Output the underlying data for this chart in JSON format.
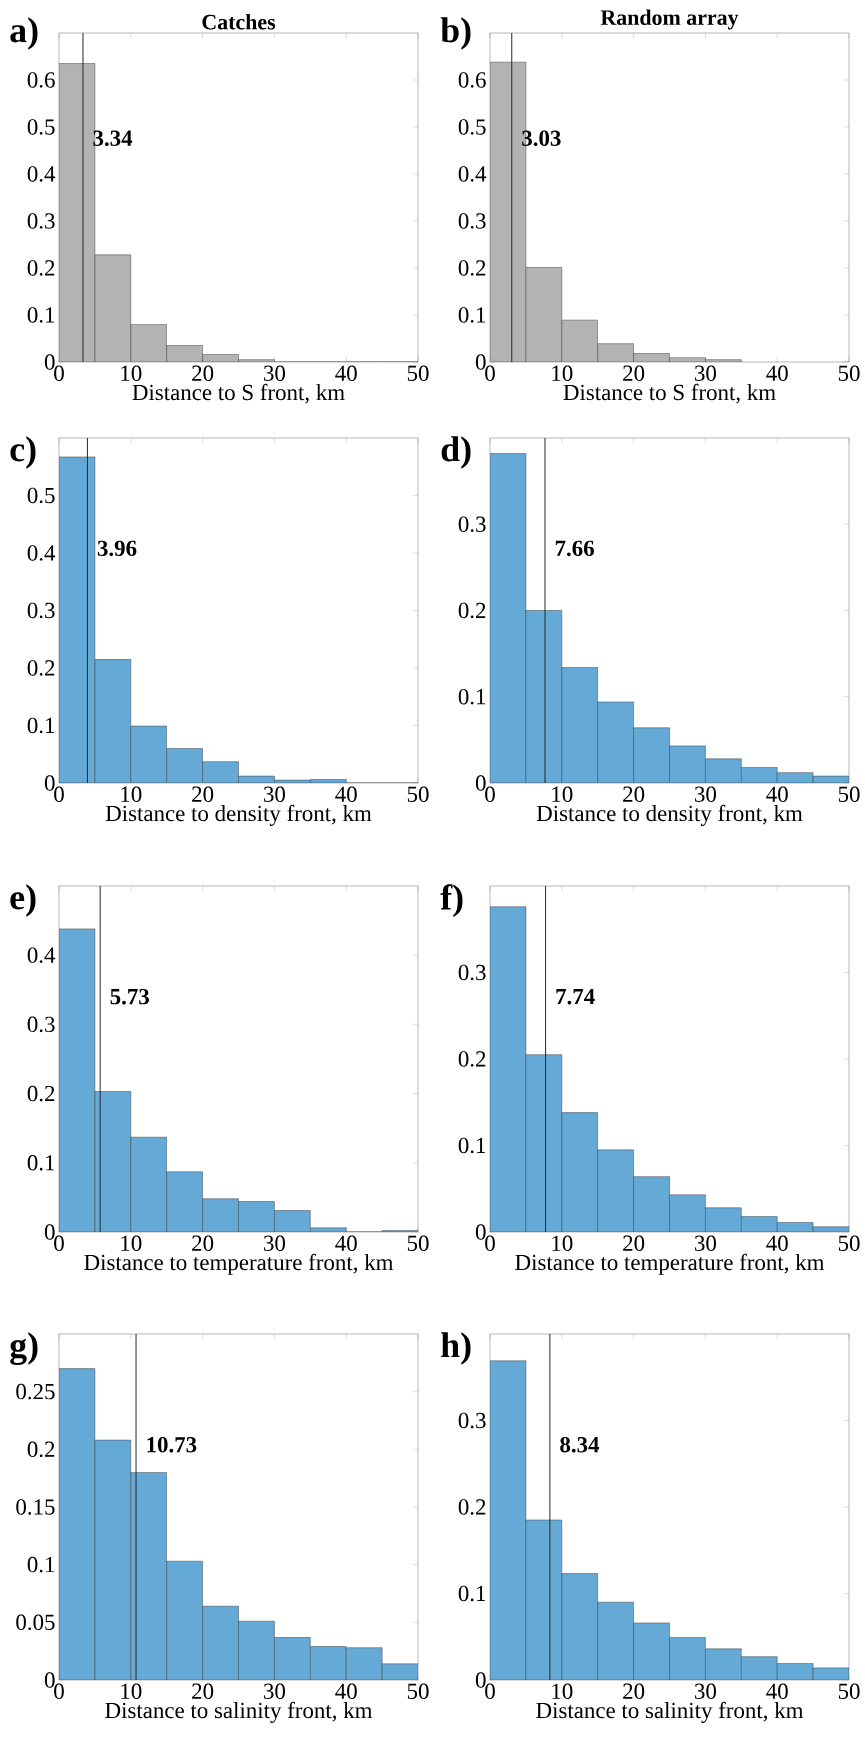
{
  "chart_data": [
    {
      "type": "histogram",
      "title": "Catches",
      "xlabel": "Distance to S front, km",
      "bins": [
        0,
        5,
        10,
        15,
        20,
        25,
        30,
        35,
        40,
        45,
        50
      ],
      "values": [
        0.635,
        0.228,
        0.08,
        0.035,
        0.016,
        0.005,
        0,
        0,
        0,
        0
      ],
      "color": "#b3b3b3",
      "xlim": [
        0,
        50
      ],
      "ylim": [
        0,
        0.7
      ],
      "xticks": [
        0,
        10,
        20,
        30,
        40,
        50
      ],
      "yticks": [
        0,
        0.1,
        0.2,
        0.3,
        0.4,
        0.5,
        0.6
      ],
      "ref_lines": [
        {
          "axis": "x",
          "value": 3.34,
          "label": "3.34"
        }
      ],
      "annotations": [
        "a)"
      ]
    },
    {
      "type": "histogram",
      "title": "Random array",
      "xlabel": "Distance to S front, km",
      "bins": [
        0,
        5,
        10,
        15,
        20,
        25,
        30,
        35,
        40,
        45,
        50
      ],
      "values": [
        0.638,
        0.201,
        0.089,
        0.039,
        0.018,
        0.009,
        0.005,
        null,
        null,
        null
      ],
      "color": "#b3b3b3",
      "xlim": [
        0,
        50
      ],
      "ylim": [
        0,
        0.7
      ],
      "xticks": [
        0,
        10,
        20,
        30,
        40,
        50
      ],
      "yticks": [
        0,
        0.1,
        0.2,
        0.3,
        0.4,
        0.5,
        0.6
      ],
      "ref_lines": [
        {
          "axis": "x",
          "value": 3.03,
          "label": "3.03"
        }
      ],
      "annotations": [
        "b)"
      ]
    },
    {
      "type": "histogram",
      "xlabel": "Distance to density front, km",
      "bins": [
        0,
        5,
        10,
        15,
        20,
        25,
        30,
        35,
        40,
        45,
        50
      ],
      "values": [
        0.567,
        0.215,
        0.099,
        0.06,
        0.037,
        0.012,
        0.005,
        0.006,
        0,
        0
      ],
      "color": "#65a9d7",
      "xlim": [
        0,
        50
      ],
      "ylim": [
        0,
        0.6
      ],
      "xticks": [
        0,
        10,
        20,
        30,
        40,
        50
      ],
      "yticks": [
        0,
        0.1,
        0.2,
        0.3,
        0.4,
        0.5
      ],
      "ref_lines": [
        {
          "axis": "x",
          "value": 3.96,
          "label": "3.96"
        }
      ],
      "annotations": [
        "c)"
      ]
    },
    {
      "type": "histogram",
      "xlabel": "Distance to density front, km",
      "bins": [
        0,
        5,
        10,
        15,
        20,
        25,
        30,
        35,
        40,
        45,
        50
      ],
      "values": [
        0.382,
        0.2,
        0.134,
        0.094,
        0.064,
        0.043,
        0.028,
        0.018,
        0.012,
        0.008
      ],
      "color": "#65a9d7",
      "xlim": [
        0,
        50
      ],
      "ylim": [
        0,
        0.4
      ],
      "xticks": [
        0,
        10,
        20,
        30,
        40,
        50
      ],
      "yticks": [
        0,
        0.1,
        0.2,
        0.3
      ],
      "ref_lines": [
        {
          "axis": "x",
          "value": 7.66,
          "label": "7.66"
        }
      ],
      "annotations": [
        "d)"
      ]
    },
    {
      "type": "histogram",
      "xlabel": "Distance to temperature front, km",
      "bins": [
        0,
        5,
        10,
        15,
        20,
        25,
        30,
        35,
        40,
        45,
        50
      ],
      "values": [
        0.438,
        0.203,
        0.137,
        0.087,
        0.048,
        0.044,
        0.031,
        0.006,
        0,
        0.002
      ],
      "color": "#65a9d7",
      "xlim": [
        0,
        50
      ],
      "ylim": [
        0,
        0.5
      ],
      "xticks": [
        0,
        10,
        20,
        30,
        40,
        50
      ],
      "yticks": [
        0,
        0.1,
        0.2,
        0.3,
        0.4
      ],
      "ref_lines": [
        {
          "axis": "x",
          "value": 5.73,
          "label": "5.73"
        }
      ],
      "annotations": [
        "e)"
      ]
    },
    {
      "type": "histogram",
      "xlabel": "Distance to temperature front, km",
      "bins": [
        0,
        5,
        10,
        15,
        20,
        25,
        30,
        35,
        40,
        45,
        50
      ],
      "values": [
        0.376,
        0.205,
        0.138,
        0.095,
        0.064,
        0.043,
        0.028,
        0.018,
        0.011,
        0.006
      ],
      "color": "#65a9d7",
      "xlim": [
        0,
        50
      ],
      "ylim": [
        0,
        0.4
      ],
      "xticks": [
        0,
        10,
        20,
        30,
        40,
        50
      ],
      "yticks": [
        0,
        0.1,
        0.2,
        0.3
      ],
      "ref_lines": [
        {
          "axis": "x",
          "value": 7.74,
          "label": "7.74"
        }
      ],
      "annotations": [
        "f)"
      ]
    },
    {
      "type": "histogram",
      "xlabel": "Distance to salinity front, km",
      "bins": [
        0,
        5,
        10,
        15,
        20,
        25,
        30,
        35,
        40,
        45,
        50
      ],
      "values": [
        0.27,
        0.208,
        0.18,
        0.103,
        0.064,
        0.051,
        0.037,
        0.029,
        0.028,
        0.014
      ],
      "color": "#65a9d7",
      "xlim": [
        0,
        50
      ],
      "ylim": [
        0,
        0.3
      ],
      "xticks": [
        0,
        10,
        20,
        30,
        40,
        50
      ],
      "yticks": [
        0,
        0.05,
        0.1,
        0.15,
        0.2,
        0.25
      ],
      "ref_lines": [
        {
          "axis": "x",
          "value": 10.73,
          "label": "10.73"
        }
      ],
      "annotations": [
        "g)"
      ]
    },
    {
      "type": "histogram",
      "xlabel": "Distance to salinity front, km",
      "bins": [
        0,
        5,
        10,
        15,
        20,
        25,
        30,
        35,
        40,
        45,
        50
      ],
      "values": [
        0.369,
        0.185,
        0.123,
        0.09,
        0.066,
        0.049,
        0.036,
        0.027,
        0.019,
        0.014
      ],
      "color": "#65a9d7",
      "xlim": [
        0,
        50
      ],
      "ylim": [
        0,
        0.4
      ],
      "xticks": [
        0,
        10,
        20,
        30,
        40,
        50
      ],
      "yticks": [
        0,
        0.1,
        0.2,
        0.3
      ],
      "ref_lines": [
        {
          "axis": "x",
          "value": 8.34,
          "label": "8.34"
        }
      ],
      "annotations": [
        "h)"
      ]
    }
  ]
}
